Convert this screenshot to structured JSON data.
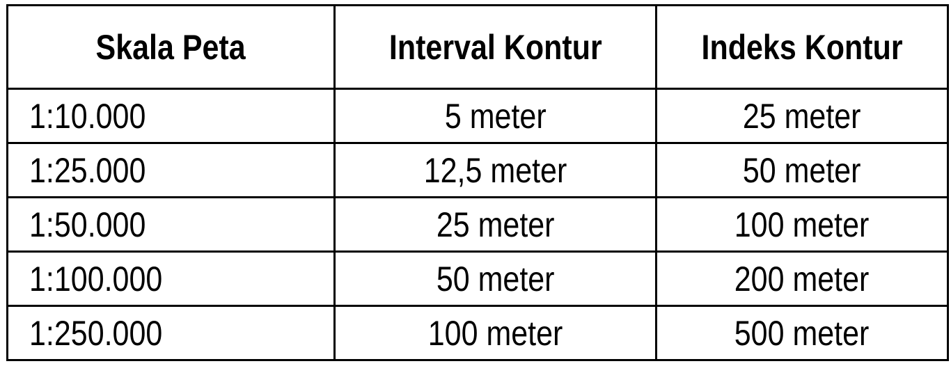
{
  "table": {
    "headers": [
      "Skala Peta",
      "Interval Kontur",
      "Indeks Kontur"
    ],
    "rows": [
      [
        "1:10.000",
        "5 meter",
        "25 meter"
      ],
      [
        "1:25.000",
        "12,5 meter",
        "50 meter"
      ],
      [
        "1:50.000",
        "25 meter",
        "100 meter"
      ],
      [
        "1:100.000",
        "50 meter",
        "200 meter"
      ],
      [
        "1:250.000",
        "100 meter",
        "500 meter"
      ]
    ]
  }
}
